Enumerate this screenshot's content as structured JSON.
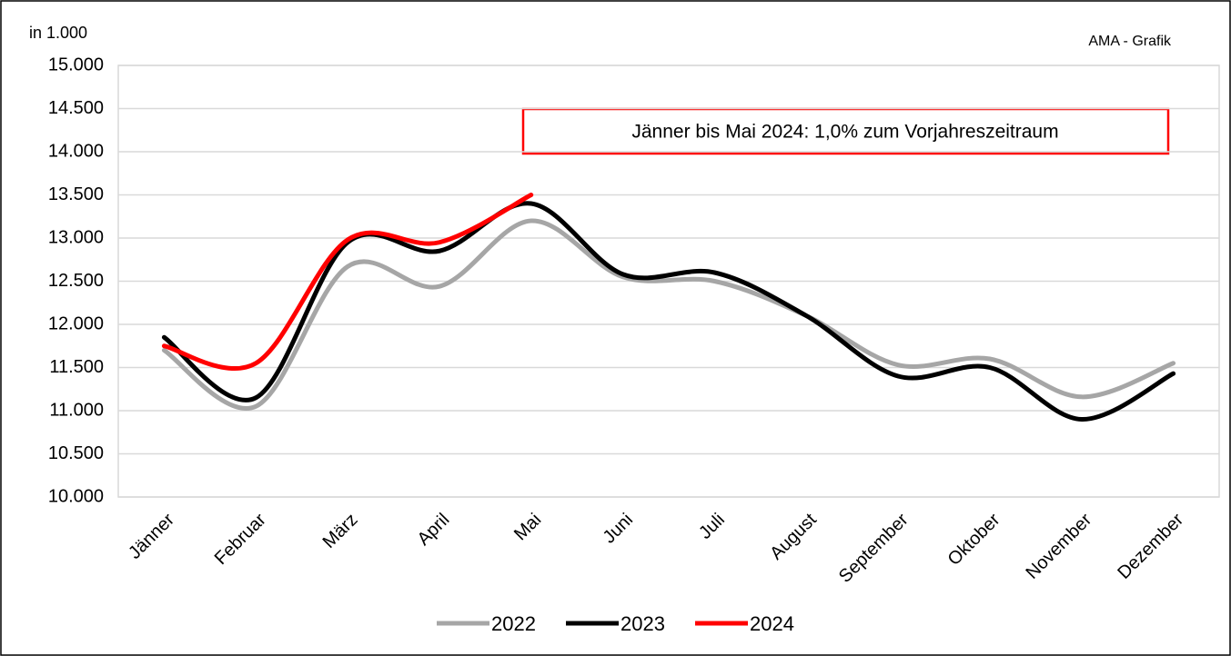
{
  "chart_data": {
    "type": "line",
    "unit_label": "in 1.000",
    "source": "AMA - Grafik",
    "annotation": "Jänner bis Mai 2024: 1,0% zum Vorjahreszeitraum",
    "categories": [
      "Jänner",
      "Februar",
      "März",
      "April",
      "Mai",
      "Juni",
      "Juli",
      "August",
      "September",
      "Oktober",
      "November",
      "Dezember"
    ],
    "series": [
      {
        "name": "2022",
        "color": "#a6a6a6",
        "values": [
          11700,
          11050,
          12670,
          12440,
          13200,
          12550,
          12500,
          12100,
          11530,
          11600,
          11160,
          11550
        ]
      },
      {
        "name": "2023",
        "color": "#000000",
        "values": [
          11850,
          11150,
          12950,
          12850,
          13400,
          12580,
          12600,
          12100,
          11400,
          11500,
          10900,
          11430
        ]
      },
      {
        "name": "2024",
        "color": "#ff0000",
        "values": [
          11750,
          11550,
          12980,
          12950,
          13500,
          null,
          null,
          null,
          null,
          null,
          null,
          null
        ]
      }
    ],
    "ylim": [
      10000,
      15000
    ],
    "yticks": [
      {
        "value": 10000,
        "label": "10.000"
      },
      {
        "value": 10500,
        "label": "10.500"
      },
      {
        "value": 11000,
        "label": "11.000"
      },
      {
        "value": 11500,
        "label": "11.500"
      },
      {
        "value": 12000,
        "label": "12.000"
      },
      {
        "value": 12500,
        "label": "12.500"
      },
      {
        "value": 13000,
        "label": "13.000"
      },
      {
        "value": 13500,
        "label": "13.500"
      },
      {
        "value": 14000,
        "label": "14.000"
      },
      {
        "value": 14500,
        "label": "14.500"
      },
      {
        "value": 15000,
        "label": "15.000"
      }
    ],
    "grid": true,
    "smooth": true,
    "legend": "bottom"
  }
}
